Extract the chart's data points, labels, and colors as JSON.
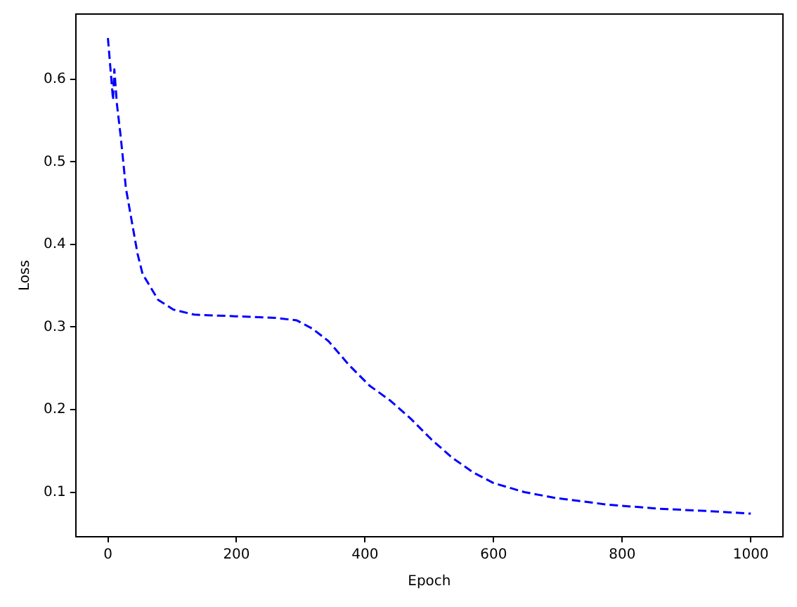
{
  "chart_data": {
    "type": "line",
    "xlabel": "Epoch",
    "ylabel": "Loss",
    "xlim": [
      -50,
      1050
    ],
    "xticks": [
      0,
      200,
      400,
      600,
      800,
      1000
    ],
    "ylim": [
      0.046,
      0.679
    ],
    "yticks": [
      0.1,
      0.2,
      0.3,
      0.4,
      0.5,
      0.6
    ],
    "grid": false,
    "legend": false,
    "marker": "none",
    "line_style": "dashed",
    "series": [
      {
        "color": "#0000ff",
        "x": [
          0,
          8,
          10,
          14,
          20,
          28,
          46,
          54,
          58,
          78,
          102,
          134,
          198,
          262,
          294,
          318,
          343,
          375,
          407,
          439,
          471,
          503,
          535,
          568,
          600,
          648,
          696,
          776,
          856,
          936,
          1000
        ],
        "values": [
          0.65,
          0.575,
          0.612,
          0.57,
          0.53,
          0.468,
          0.389,
          0.364,
          0.359,
          0.333,
          0.321,
          0.315,
          0.313,
          0.311,
          0.308,
          0.298,
          0.283,
          0.254,
          0.229,
          0.211,
          0.189,
          0.164,
          0.142,
          0.124,
          0.111,
          0.1,
          0.093,
          0.085,
          0.08,
          0.077,
          0.074
        ]
      }
    ]
  }
}
